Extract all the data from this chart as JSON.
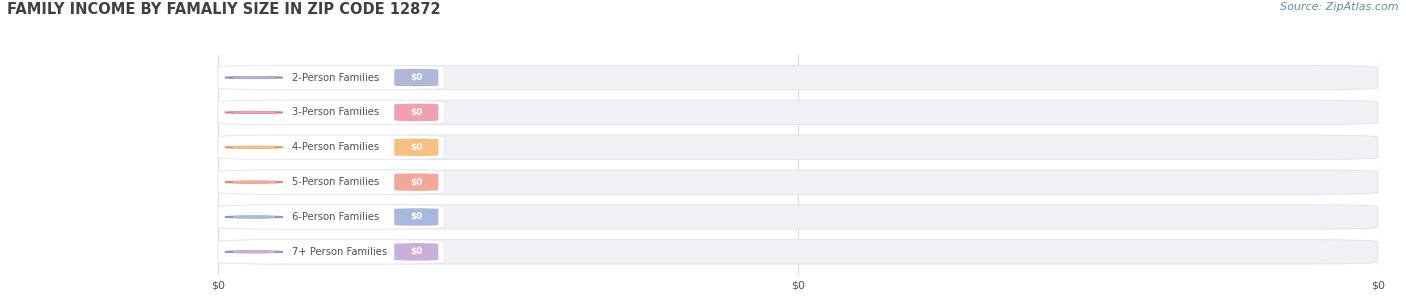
{
  "title": "FAMILY INCOME BY FAMALIY SIZE IN ZIP CODE 12872",
  "source": "Source: ZipAtlas.com",
  "categories": [
    "2-Person Families",
    "3-Person Families",
    "4-Person Families",
    "5-Person Families",
    "6-Person Families",
    "7+ Person Families"
  ],
  "values": [
    0,
    0,
    0,
    0,
    0,
    0
  ],
  "value_labels": [
    "$0",
    "$0",
    "$0",
    "$0",
    "$0",
    "$0"
  ],
  "bar_colors": [
    "#b0b8d8",
    "#f0a0b0",
    "#f5c080",
    "#f0a898",
    "#a8b8e0",
    "#c8b0d8"
  ],
  "circle_colors": [
    "#8890c0",
    "#e07888",
    "#e0a050",
    "#e08878",
    "#8898d0",
    "#a888c0"
  ],
  "bar_bg_color": "#f0f0f5",
  "bar_bg_border": "#e0e0ec",
  "label_box_color": "#ffffff",
  "label_box_border": "#e8e8f2",
  "bg_color": "#ffffff",
  "title_color": "#404040",
  "title_fontsize": 10.5,
  "source_color": "#6688aa",
  "source_fontsize": 8,
  "label_color": "#505060",
  "value_text_color": "#ffffff",
  "grid_color": "#d8d8e8",
  "xtick_labels": [
    "$0",
    "$0",
    "$0"
  ],
  "xtick_positions": [
    0.0,
    0.5,
    1.0
  ]
}
